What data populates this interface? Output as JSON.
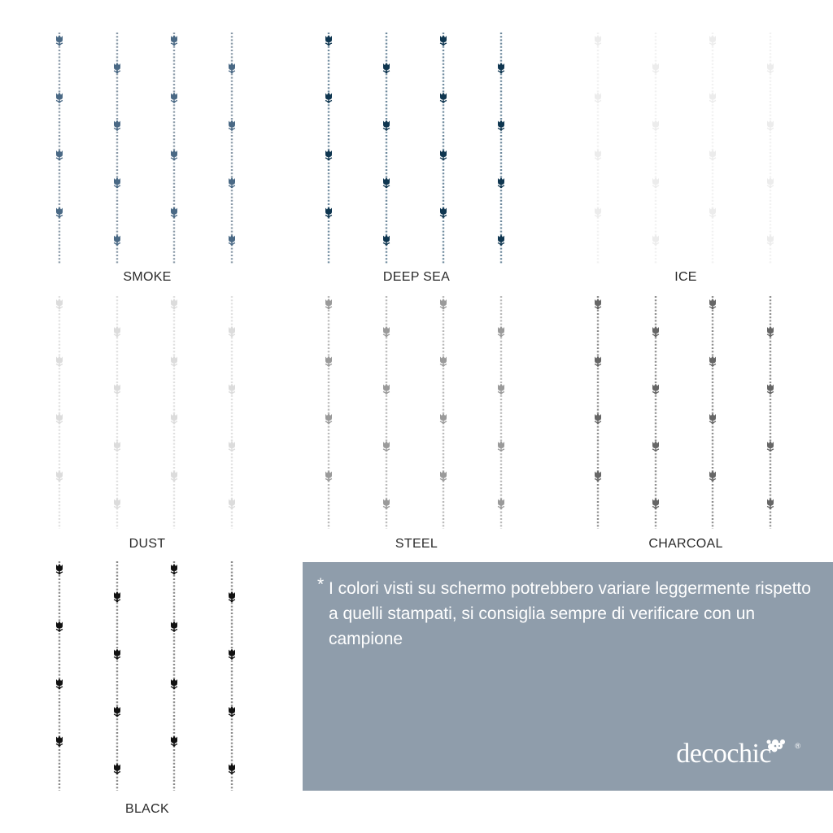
{
  "swatches": [
    {
      "name": "SMOKE",
      "stripe": "#8a9aa8",
      "flower": "#4a6985",
      "opacity": 1
    },
    {
      "name": "DEEP SEA",
      "stripe": "#6f8a9e",
      "flower": "#0f3650",
      "opacity": 1
    },
    {
      "name": "ICE",
      "stripe": "#f1f1f1",
      "flower": "#ececec",
      "opacity": 1
    },
    {
      "name": "DUST",
      "stripe": "#e0e0e0",
      "flower": "#dcdcdc",
      "opacity": 1
    },
    {
      "name": "STEEL",
      "stripe": "#b9b9b9",
      "flower": "#9a9a9a",
      "opacity": 1
    },
    {
      "name": "CHARCOAL",
      "stripe": "#8f8f8f",
      "flower": "#666666",
      "opacity": 1
    },
    {
      "name": "BLACK",
      "stripe": "#8a8a8a",
      "flower": "#111111",
      "opacity": 1
    }
  ],
  "note": {
    "asterisk": "*",
    "text": "I colori visti su schermo potrebbero variare leggermente rispetto a quelli stampati, si consiglia sempre di verificare con un campione"
  },
  "brand": {
    "name": "decochic",
    "registered": "®",
    "icon": "flower-cluster-icon"
  },
  "colors": {
    "panel": "#8f9dab",
    "panel_text": "#ffffff"
  }
}
